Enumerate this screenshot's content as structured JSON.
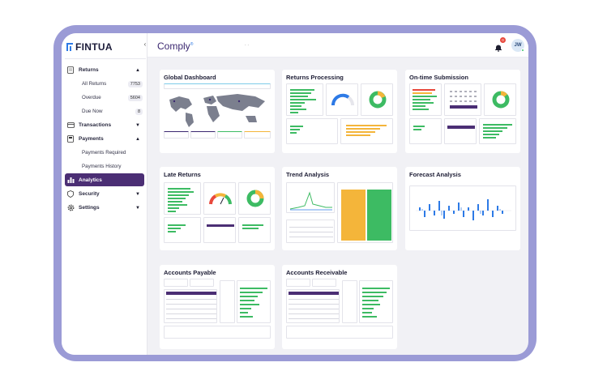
{
  "app": {
    "logo": "FINTUA",
    "brand": "Comply",
    "brand_mark": "®",
    "topbar_dots": ". .",
    "notification_count": "0",
    "user_initials": "JW"
  },
  "sidebar": {
    "returns": {
      "label": "Returns",
      "icon": "document-icon",
      "expanded": true
    },
    "returns_items": [
      {
        "label": "All Returns",
        "count": "7753"
      },
      {
        "label": "Overdue",
        "count": "5604"
      },
      {
        "label": "Due Now",
        "count": "8"
      }
    ],
    "transactions": {
      "label": "Transactions",
      "icon": "card-icon"
    },
    "payments": {
      "label": "Payments",
      "icon": "payment-icon",
      "expanded": true
    },
    "payments_items": [
      {
        "label": "Payments Required"
      },
      {
        "label": "Payments History"
      }
    ],
    "analytics": {
      "label": "Analytics",
      "icon": "bar-chart-icon",
      "active": true
    },
    "security": {
      "label": "Security",
      "icon": "shield-icon"
    },
    "settings": {
      "label": "Settings",
      "icon": "gear-icon"
    }
  },
  "cards": [
    {
      "title": "Global Dashboard"
    },
    {
      "title": "Returns Processing"
    },
    {
      "title": "On-time Submission"
    },
    {
      "title": "Late Returns"
    },
    {
      "title": "Trend Analysis"
    },
    {
      "title": "Forecast Analysis"
    },
    {
      "title": "Accounts Payable"
    },
    {
      "title": "Accounts Receivable"
    }
  ],
  "colors": {
    "accent": "#4b2e74",
    "frame": "#9b9bd6",
    "green": "#3dbb63",
    "orange": "#f4b53a",
    "blue": "#2d7ae6"
  }
}
